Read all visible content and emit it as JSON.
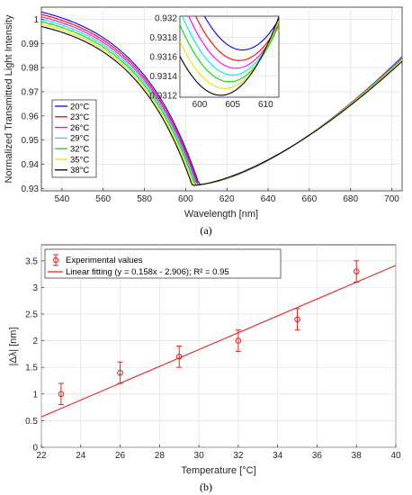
{
  "chart_data": [
    {
      "type": "line",
      "panel_label": "(a)",
      "xlabel": "Wavelength [nm]",
      "ylabel": "Normalized Transmitted Light Intensity",
      "xlim": [
        530,
        705
      ],
      "ylim": [
        0.929,
        1.005
      ],
      "xticks": [
        540,
        560,
        580,
        600,
        620,
        640,
        660,
        680,
        700
      ],
      "yticks": [
        0.93,
        0.94,
        0.95,
        0.96,
        0.97,
        0.98,
        0.99,
        1
      ],
      "legend_position": "left",
      "series": [
        {
          "name": "20°C",
          "color": "#0000ff",
          "min_x": 606.5,
          "min_y": 0.93167,
          "left_y": 1.003,
          "right_y": 0.9845
        },
        {
          "name": "23°C",
          "color": "#ff0000",
          "min_x": 606.0,
          "min_y": 0.93156,
          "left_y": 1.002,
          "right_y": 0.9843
        },
        {
          "name": "26°C",
          "color": "#ff00ff",
          "min_x": 605.5,
          "min_y": 0.93148,
          "left_y": 1.001,
          "right_y": 0.984
        },
        {
          "name": "29°C",
          "color": "#00e5ee",
          "min_x": 605.0,
          "min_y": 0.93141,
          "left_y": 1.0,
          "right_y": 0.9838
        },
        {
          "name": "32°C",
          "color": "#00dd00",
          "min_x": 604.5,
          "min_y": 0.93134,
          "left_y": 0.999,
          "right_y": 0.9835
        },
        {
          "name": "35°C",
          "color": "#e6e600",
          "min_x": 603.8,
          "min_y": 0.93127,
          "left_y": 0.998,
          "right_y": 0.9832
        },
        {
          "name": "38°C",
          "color": "#000000",
          "min_x": 603.2,
          "min_y": 0.9312,
          "left_y": 0.997,
          "right_y": 0.9826
        }
      ],
      "inset": {
        "xlim": [
          597,
          612
        ],
        "ylim": [
          0.93118,
          0.93202
        ],
        "xticks": [
          600,
          605,
          610
        ],
        "yticks": [
          0.9312,
          0.9314,
          0.9316,
          0.9318,
          0.932
        ]
      }
    },
    {
      "type": "scatter",
      "panel_label": "(b)",
      "xlabel": "Temperature [°C]",
      "ylabel": "|Δλ| [nm]",
      "xlim": [
        22,
        40
      ],
      "ylim": [
        0,
        3.8
      ],
      "xticks": [
        22,
        24,
        26,
        28,
        30,
        32,
        34,
        36,
        38,
        40
      ],
      "yticks": [
        0,
        0.5,
        1,
        1.5,
        2,
        2.5,
        3,
        3.5
      ],
      "legend_position": "top-left",
      "color": "#e8211d",
      "series": [
        {
          "name": "Experimental values",
          "x": [
            23,
            26,
            29,
            32,
            35,
            38
          ],
          "y": [
            1.0,
            1.4,
            1.7,
            2.0,
            2.4,
            3.3
          ],
          "yerr": [
            0.2,
            0.2,
            0.2,
            0.2,
            0.2,
            0.2
          ]
        }
      ],
      "fit": {
        "name": "Linear fitting (y = 0.158x - 2.906); R² = 0.95",
        "slope": 0.158,
        "intercept": -2.906
      }
    }
  ]
}
